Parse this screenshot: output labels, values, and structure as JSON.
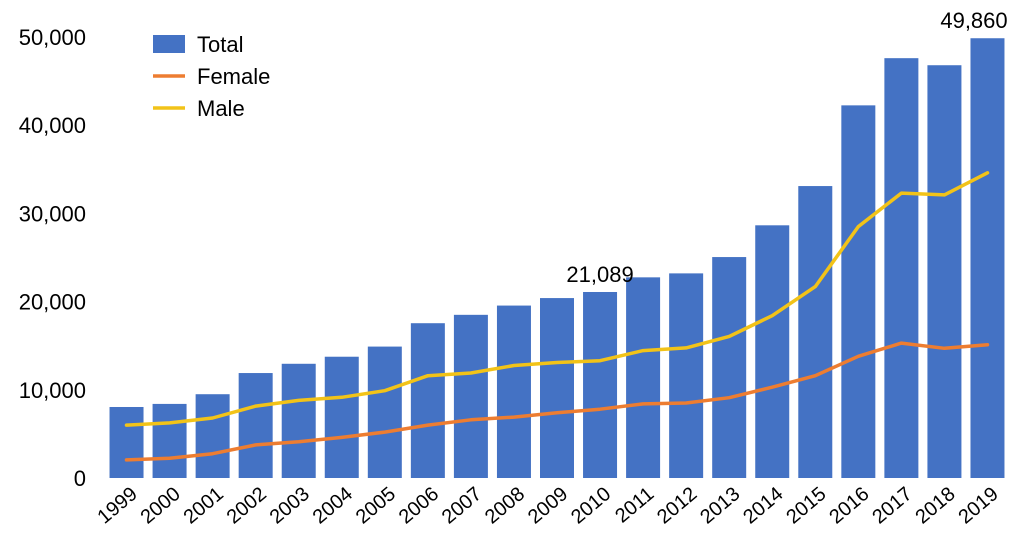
{
  "chart_data": {
    "type": "bar",
    "title": "",
    "xlabel": "",
    "ylabel": "",
    "ylim": [
      0,
      50000
    ],
    "yticks": [
      0,
      10000,
      20000,
      30000,
      40000,
      50000
    ],
    "ytick_labels": [
      "0",
      "10,000",
      "20,000",
      "30,000",
      "40,000",
      "50,000"
    ],
    "grid": false,
    "legend_position": "top-left",
    "categories": [
      "1999",
      "2000",
      "2001",
      "2002",
      "2003",
      "2004",
      "2005",
      "2006",
      "2007",
      "2008",
      "2009",
      "2010",
      "2011",
      "2012",
      "2013",
      "2014",
      "2015",
      "2016",
      "2017",
      "2018",
      "2019"
    ],
    "series": [
      {
        "name": "Total",
        "kind": "bar",
        "color": "#4472C4",
        "values": [
          8050,
          8400,
          9500,
          11900,
          12950,
          13750,
          14900,
          17550,
          18500,
          19550,
          20400,
          21089,
          22750,
          23200,
          25050,
          28650,
          33100,
          42250,
          47600,
          46800,
          49860
        ]
      },
      {
        "name": "Female",
        "kind": "line",
        "color": "#ED7D31",
        "values": [
          2050,
          2250,
          2750,
          3750,
          4100,
          4600,
          5200,
          6000,
          6600,
          6900,
          7400,
          7800,
          8400,
          8500,
          9100,
          10300,
          11600,
          13800,
          15300,
          14700,
          15100
        ]
      },
      {
        "name": "Male",
        "kind": "line",
        "color": "#F2C318",
        "values": [
          6000,
          6250,
          6800,
          8150,
          8800,
          9150,
          9900,
          11600,
          11900,
          12750,
          13100,
          13300,
          14450,
          14750,
          16050,
          18400,
          21700,
          28500,
          32300,
          32100,
          34600
        ]
      }
    ],
    "annotations": [
      {
        "category": "2010",
        "text": "21,089"
      },
      {
        "category": "2019",
        "text": "49,860"
      }
    ]
  }
}
